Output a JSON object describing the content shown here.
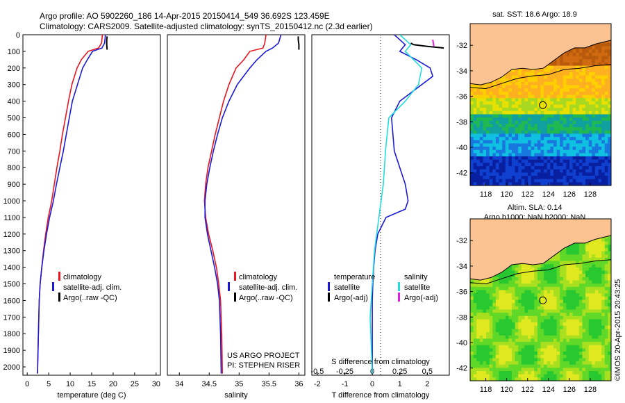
{
  "header": {
    "line1": "Argo profile: AO 5902260_186 14-Apr-2015 20150414_549 36.692S 123.459E",
    "line2": "Climatology: CARS2009. Satellite-adjusted climatology: synTS_20150412.nc (2.3d earlier)"
  },
  "colors": {
    "climatology": "#e8141e",
    "satellite": "#1a1ad6",
    "argo": "#000000",
    "sat_salinity": "#22dddd",
    "argo_salinity": "#e020e0",
    "land": "#fbc392"
  },
  "chart_data": [
    {
      "type": "line",
      "id": "temperature",
      "xlabel": "temperature (deg C)",
      "xlim": [
        -1,
        31
      ],
      "xticks": [
        "0",
        "5",
        "10",
        "15",
        "20",
        "25",
        "30"
      ],
      "ylim": [
        2050,
        0
      ],
      "yticks": [
        "0",
        "100",
        "200",
        "300",
        "400",
        "500",
        "600",
        "700",
        "800",
        "900",
        "1000",
        "1100",
        "1200",
        "1300",
        "1400",
        "1500",
        "1600",
        "1700",
        "1800",
        "1900",
        "2000"
      ],
      "legend": [
        "climatology",
        "satellite-adj. clim.",
        "Argo(..raw -QC)"
      ],
      "series": [
        {
          "name": "climatology",
          "x": [
            17.5,
            17.3,
            16.6,
            14.2,
            12.6,
            11.6,
            10.4,
            9.6,
            8.9,
            8.2,
            7.6,
            6.9,
            6.3,
            5.7,
            4.9,
            4.3,
            3.8,
            3.4,
            3.0,
            2.8,
            2.6,
            2.4
          ],
          "y": [
            0,
            50,
            80,
            100,
            150,
            200,
            300,
            400,
            500,
            600,
            700,
            800,
            900,
            1000,
            1100,
            1200,
            1300,
            1400,
            1500,
            1600,
            1800,
            2040
          ]
        },
        {
          "name": "satellite-adj. clim.",
          "x": [
            18.2,
            18.0,
            17.4,
            15.2,
            14.0,
            12.9,
            11.7,
            10.5,
            9.8,
            9.1,
            8.4,
            7.6,
            6.8,
            6.1,
            5.2,
            4.5,
            3.9,
            3.4,
            3.0,
            2.8,
            2.6,
            2.4
          ],
          "y": [
            0,
            50,
            80,
            100,
            150,
            200,
            300,
            400,
            500,
            600,
            700,
            800,
            900,
            1000,
            1100,
            1200,
            1300,
            1400,
            1500,
            1600,
            1800,
            2040
          ]
        },
        {
          "name": "Argo(..raw -QC)",
          "x": [
            18.6,
            18.5,
            18.5,
            18.6
          ],
          "y": [
            10,
            30,
            60,
            90
          ]
        }
      ]
    },
    {
      "type": "line",
      "id": "salinity",
      "xlabel": "salinity",
      "xlim": [
        33.8,
        36.1
      ],
      "xticks": [
        "34",
        "34.5",
        "35",
        "35.5",
        "36"
      ],
      "ylim": [
        2050,
        0
      ],
      "legend": [
        "climatology",
        "satellite-adj. clim.",
        "Argo(..raw -QC)"
      ],
      "annotation": [
        "US ARGO PROJECT",
        "PI: STEPHEN RISER"
      ],
      "series": [
        {
          "name": "climatology",
          "x": [
            35.45,
            35.43,
            35.4,
            35.18,
            35.08,
            34.95,
            34.83,
            34.74,
            34.67,
            34.6,
            34.54,
            34.48,
            34.44,
            34.42,
            34.44,
            34.49,
            34.56,
            34.62,
            34.66,
            34.69,
            34.71,
            34.72
          ],
          "y": [
            0,
            50,
            80,
            100,
            150,
            200,
            300,
            400,
            500,
            600,
            700,
            800,
            900,
            1000,
            1100,
            1200,
            1300,
            1400,
            1500,
            1600,
            1800,
            2040
          ]
        },
        {
          "name": "satellite-adj. clim.",
          "x": [
            35.7,
            35.66,
            35.56,
            35.45,
            35.3,
            35.18,
            34.97,
            34.83,
            34.72,
            34.64,
            34.57,
            34.51,
            34.46,
            34.43,
            34.43,
            34.47,
            34.53,
            34.59,
            34.64,
            34.67,
            34.69,
            34.7
          ],
          "y": [
            0,
            50,
            80,
            100,
            150,
            200,
            300,
            400,
            500,
            600,
            700,
            800,
            900,
            1000,
            1100,
            1200,
            1300,
            1400,
            1500,
            1600,
            1800,
            2040
          ]
        },
        {
          "name": "Argo(..raw -QC)",
          "x": [
            35.99,
            35.99,
            36.0,
            36.0
          ],
          "y": [
            10,
            30,
            60,
            90
          ]
        }
      ]
    },
    {
      "type": "line",
      "id": "difference",
      "xlabel": "T difference from climatology",
      "x2label": "S difference from climatology",
      "xlim": [
        -2.2,
        2.8
      ],
      "xticks": [
        "-2",
        "-1",
        "0",
        "1",
        "2"
      ],
      "x2lim": [
        -0.55,
        0.7
      ],
      "x2ticks": [
        "-0.5",
        "-0.25",
        "0",
        "0.25",
        "0.5"
      ],
      "ylim": [
        2050,
        0
      ],
      "legend_temperature": [
        "temperature",
        "satellite",
        "Argo(-adj)"
      ],
      "legend_salinity": [
        "salinity",
        "satellite",
        "Argo(-adj)"
      ],
      "series": [
        {
          "name": "temperature satellite",
          "x": [
            0.8,
            1.2,
            1.0,
            1.6,
            2.1,
            2.2,
            1.0,
            0.7,
            0.8,
            1.0,
            1.2,
            1.3,
            1.2,
            0.5,
            0.2,
            0.1,
            0.05,
            0.02,
            0.0,
            0.0
          ],
          "y": [
            0,
            60,
            100,
            150,
            200,
            250,
            400,
            500,
            700,
            800,
            900,
            1000,
            1050,
            1100,
            1200,
            1300,
            1400,
            1500,
            1600,
            2040
          ]
        },
        {
          "name": "temperature Argo(-adj)",
          "x": [
            1.4,
            1.5,
            2.0,
            2.6
          ],
          "y": [
            50,
            60,
            70,
            80
          ]
        },
        {
          "name": "salinity satellite",
          "x": [
            0.25,
            0.35,
            0.3,
            0.45,
            0.42,
            0.3,
            0.15,
            0.12,
            0.1,
            0.08,
            0.06,
            0.02,
            0.0,
            -0.02,
            0.0
          ],
          "y": [
            0,
            60,
            100,
            200,
            300,
            400,
            500,
            700,
            900,
            1000,
            1100,
            1300,
            1500,
            1700,
            2040
          ]
        },
        {
          "name": "salinity Argo(-adj)",
          "x": [
            0.55,
            0.56
          ],
          "y": [
            30,
            70
          ]
        }
      ]
    },
    {
      "type": "heatmap",
      "id": "sst-map",
      "title": "sat. SST: 18.6 Argo: 18.9",
      "xticks": [
        "118",
        "120",
        "122",
        "124",
        "126",
        "128"
      ],
      "yticks": [
        "-32",
        "-34",
        "-36",
        "-38",
        "-40",
        "-42"
      ],
      "xlim": [
        116.5,
        130
      ],
      "ylim": [
        -43,
        -30.3
      ],
      "marker": {
        "lon": 123.459,
        "lat": -36.692
      }
    },
    {
      "type": "heatmap",
      "id": "sla-map",
      "title": "Altim. SLA: 0.14",
      "subtitle": "Argo h1000: NaN h2000: NaN",
      "xticks": [
        "118",
        "120",
        "122",
        "124",
        "126",
        "128"
      ],
      "yticks": [
        "-32",
        "-34",
        "-36",
        "-38",
        "-40",
        "-42"
      ],
      "xlim": [
        116.5,
        130
      ],
      "ylim": [
        -43,
        -30.3
      ],
      "marker": {
        "lon": 123.459,
        "lat": -36.692
      }
    }
  ],
  "credit": "©IMOS 20-Apr-2015 20:43:25"
}
